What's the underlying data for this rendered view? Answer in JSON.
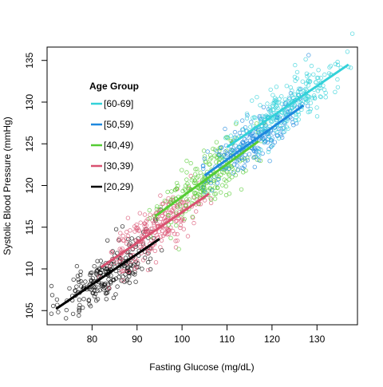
{
  "chart_data": {
    "type": "scatter",
    "title": "",
    "xlabel": "Fasting Glucose (mg/dL)",
    "ylabel": "Systolic Blood Pressure (mmHg)",
    "xlim": [
      70,
      139
    ],
    "ylim": [
      103.3,
      136.6
    ],
    "x_ticks": [
      80,
      90,
      100,
      110,
      120,
      130
    ],
    "y_ticks": [
      105,
      110,
      115,
      120,
      125,
      130,
      135
    ],
    "grid": false,
    "legend": {
      "title": "Age Group",
      "placement": "top-left"
    },
    "series": [
      {
        "name": "[60-69]",
        "color": "#33D1D9",
        "x_range": [
          110,
          137
        ],
        "line": [
          [
            110,
            124.6
          ],
          [
            137,
            134.5
          ]
        ],
        "spread": 1.6,
        "n": 240
      },
      {
        "name": "[50,59)",
        "color": "#1E88DE",
        "x_range": [
          105,
          127
        ],
        "line": [
          [
            105,
            121.2
          ],
          [
            127,
            129.6
          ]
        ],
        "spread": 1.5,
        "n": 240
      },
      {
        "name": "[40,49)",
        "color": "#55CC33",
        "x_range": [
          94,
          117
        ],
        "line": [
          [
            94,
            116.3
          ],
          [
            117,
            125.3
          ]
        ],
        "spread": 1.6,
        "n": 240
      },
      {
        "name": "[30,39)",
        "color": "#D95070",
        "x_range": [
          82,
          106
        ],
        "line": [
          [
            82,
            110.2
          ],
          [
            106,
            119.0
          ]
        ],
        "spread": 1.6,
        "n": 240
      },
      {
        "name": "[20,29)",
        "color": "#000000",
        "x_range": [
          72,
          95
        ],
        "line": [
          [
            72,
            105.2
          ],
          [
            95,
            113.6
          ]
        ],
        "spread": 1.6,
        "n": 240
      }
    ]
  }
}
